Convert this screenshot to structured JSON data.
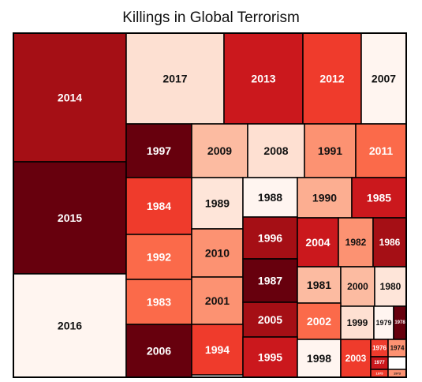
{
  "chart_data": {
    "type": "treemap",
    "title": "Killings in Global Terrorism",
    "years": [
      "2014",
      "2015",
      "2016",
      "2017",
      "2013",
      "2012",
      "2007",
      "1997",
      "2009",
      "2008",
      "1991",
      "2011",
      "1984",
      "1989",
      "1988",
      "1990",
      "1985",
      "1992",
      "2010",
      "1996",
      "2004",
      "1982",
      "1986",
      "1983",
      "2001",
      "1987",
      "1981",
      "2000",
      "1980",
      "2005",
      "2002",
      "1999",
      "1979",
      "1978",
      "2006",
      "1994",
      "1995",
      "1998",
      "2003",
      "1976",
      "1974",
      "1977",
      "1975",
      "1973"
    ],
    "colors": [
      "#a50f15",
      "#67000d",
      "#fff5f0",
      "#fde0d2",
      "#cb181d",
      "#ef3b2c",
      "#fff5f0",
      "#67000d",
      "#fcbba1",
      "#fee0d2",
      "#fc9272",
      "#fb6a4a",
      "#ef3b2c",
      "#fee5d9",
      "#fff5f0",
      "#fcae91",
      "#cb181d",
      "#fb6a4a",
      "#fc9272",
      "#a50f15",
      "#cb181d",
      "#fc9272",
      "#a50f15",
      "#fb6a4a",
      "#fc9272",
      "#67000d",
      "#fcbba1",
      "#fcbba1",
      "#fee5d9",
      "#a50f15",
      "#fb6a4a",
      "#fee0d2",
      "#fff5f0",
      "#67000d",
      "#67000d",
      "#ef3b2c",
      "#cb181d",
      "#fff5f0",
      "#ef3b2c",
      "#ef3b2c",
      "#fc9272",
      "#cb181d",
      "#ef3b2c",
      "#fc9272"
    ]
  }
}
